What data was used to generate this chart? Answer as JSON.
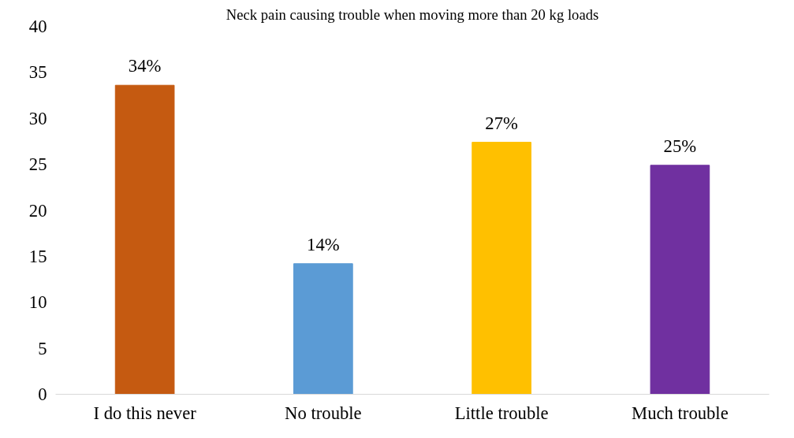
{
  "chart_data": {
    "type": "bar",
    "title": "Neck pain causing trouble when moving more than 20 kg loads",
    "categories": [
      "I do this never",
      "No trouble",
      "Little trouble",
      "Much trouble"
    ],
    "values": [
      33.6,
      14.2,
      27.4,
      24.9
    ],
    "colors": [
      "#c55a11",
      "#5b9bd5",
      "#ffc000",
      "#7030a0"
    ],
    "value_labels": [
      "34%",
      "14%",
      "27%",
      "25%"
    ],
    "ylim": [
      0,
      40
    ],
    "yticks": [
      0,
      5,
      10,
      15,
      20,
      25,
      30,
      35,
      40
    ],
    "grid": false
  }
}
